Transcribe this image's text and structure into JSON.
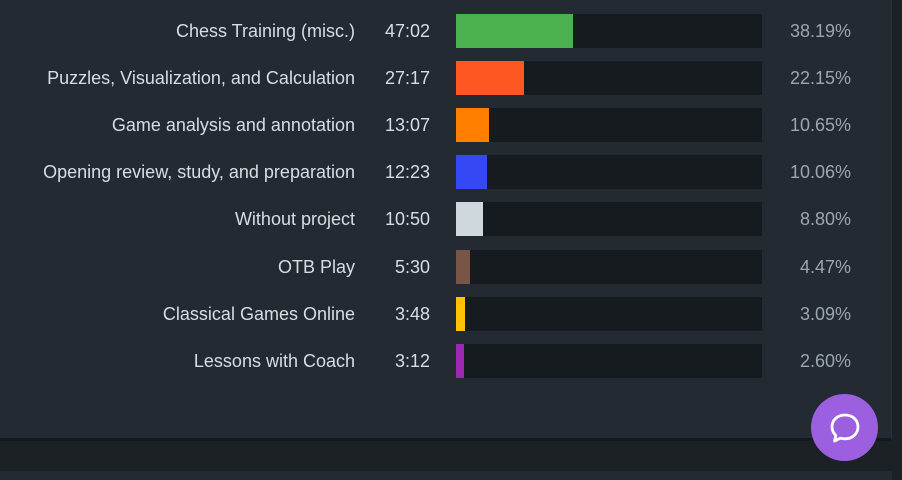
{
  "report": {
    "rows": [
      {
        "name": "Chess Training (misc.)",
        "time": "47:02",
        "percent": "38.19%",
        "share": 38.19,
        "color": "#4caf50"
      },
      {
        "name": "Puzzles, Visualization, and Calculation",
        "time": "27:17",
        "percent": "22.15%",
        "share": 22.15,
        "color": "#ff5722"
      },
      {
        "name": "Game analysis and annotation",
        "time": "13:07",
        "percent": "10.65%",
        "share": 10.65,
        "color": "#ff7f00"
      },
      {
        "name": "Opening review, study, and preparation",
        "time": "12:23",
        "percent": "10.06%",
        "share": 10.06,
        "color": "#3448f5"
      },
      {
        "name": "Without project",
        "time": "10:50",
        "percent": "8.80%",
        "share": 8.8,
        "color": "#cfd8dc"
      },
      {
        "name": "OTB Play",
        "time": "5:30",
        "percent": "4.47%",
        "share": 4.47,
        "color": "#795548"
      },
      {
        "name": "Classical Games Online",
        "time": "3:48",
        "percent": "3.09%",
        "share": 3.09,
        "color": "#ffc107"
      },
      {
        "name": "Lessons with Coach",
        "time": "3:12",
        "percent": "2.60%",
        "share": 2.6,
        "color": "#9c27b0"
      }
    ]
  },
  "chat": {
    "icon": "chat-bubble-icon",
    "color": "#9b5fe0"
  }
}
